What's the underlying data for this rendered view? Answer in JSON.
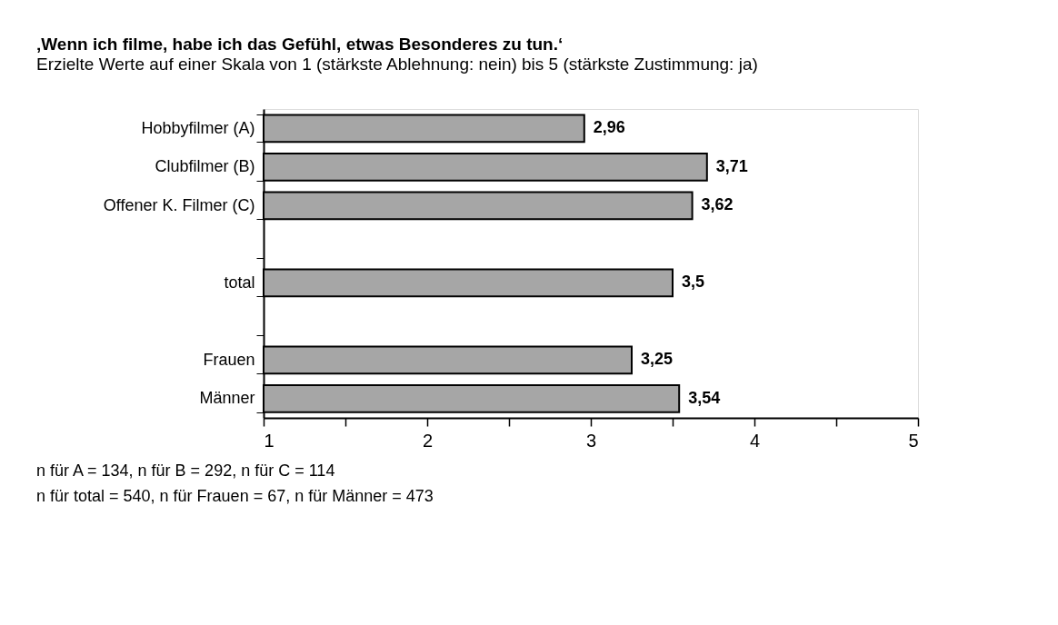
{
  "chart_data": {
    "type": "bar",
    "orientation": "horizontal",
    "title": "‚Wenn ich filme, habe ich das Gefühl, etwas Besonderes zu tun.‘",
    "subtitle": "Erzielte Werte auf einer Skala von 1 (stärkste Ablehnung: nein) bis 5 (stärkste Zustimmung: ja)",
    "categories": [
      "Hobbyfilmer  (A)",
      "Clubfilmer  (B)",
      "Offener K. Filmer (C)",
      null,
      "total",
      null,
      "Frauen",
      "Männer"
    ],
    "values": [
      2.96,
      3.71,
      3.62,
      null,
      3.5,
      null,
      3.25,
      3.54
    ],
    "value_labels": [
      "2,96",
      "3,71",
      "3,62",
      null,
      "3,5",
      null,
      "3,25",
      "3,54"
    ],
    "color": "#a6a6a6",
    "xlim": [
      1,
      5
    ],
    "xticks": [
      1,
      {
        "value": 1.5,
        "label": null
      },
      2,
      {
        "value": 2.5,
        "label": null
      },
      3,
      {
        "value": 3.5,
        "label": null
      },
      4,
      {
        "value": 4.5,
        "label": null
      },
      5
    ],
    "grid": false,
    "annotations": [
      "n für A = 134, n für B = 292, n für C = 114",
      "n für total = 540, n für Frauen = 67, n für Männer = 473"
    ]
  }
}
